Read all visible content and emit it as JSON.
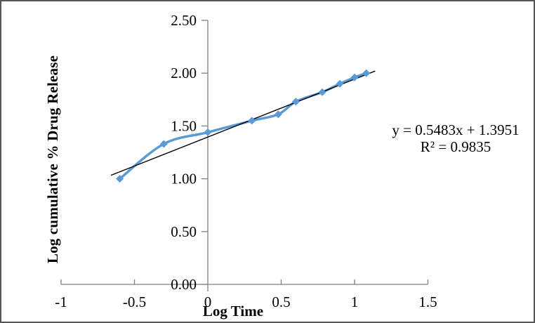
{
  "frame": {
    "background_color": "#ffffff",
    "border_color": "#565656"
  },
  "chart_data": {
    "type": "line",
    "title": "",
    "xlabel": "Log Time",
    "ylabel": "Log cumulative % Drug Release",
    "xlim": [
      -1,
      1.5
    ],
    "ylim": [
      0.0,
      2.5
    ],
    "grid": false,
    "legend": "none",
    "x_tick_values": [
      -1,
      -0.5,
      0,
      0.5,
      1,
      1.5
    ],
    "x_tick_labels": [
      "-1",
      "-0.5",
      "0",
      "0.5",
      "1",
      "1.5"
    ],
    "y_tick_values": [
      0.0,
      0.5,
      1.0,
      1.5,
      2.0,
      2.5
    ],
    "y_tick_labels": [
      "0.00",
      "0.50",
      "1.00",
      "1.50",
      "2.00",
      "2.50"
    ],
    "axis_color": "#808080",
    "series": [
      {
        "name": "log-drug-release",
        "color": "#5B9BD5",
        "marker": "diamond",
        "smoothed": true,
        "x": [
          -0.6,
          -0.3,
          0.0,
          0.3,
          0.48,
          0.6,
          0.78,
          0.9,
          1.0,
          1.08
        ],
        "y": [
          1.0,
          1.33,
          1.44,
          1.55,
          1.61,
          1.73,
          1.82,
          1.9,
          1.96,
          2.0
        ]
      }
    ],
    "trendline": {
      "slope": 0.5483,
      "intercept": 1.3951,
      "x_start": -0.66,
      "x_end": 1.14,
      "color": "#000000",
      "equation_label": "y = 0.5483x + 1.3951",
      "r_squared_label": "R² = 0.9835"
    }
  }
}
